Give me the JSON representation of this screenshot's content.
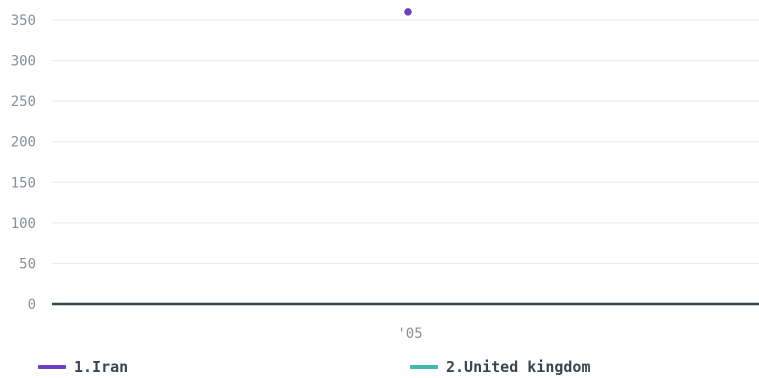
{
  "chart_data": {
    "type": "line",
    "title": "",
    "xlabel": "",
    "ylabel": "",
    "categories": [
      "'05"
    ],
    "ylim": [
      0,
      350
    ],
    "yticks": [
      0,
      50,
      100,
      150,
      200,
      250,
      300,
      350
    ],
    "ytick_labels": [
      "0",
      "50",
      "100",
      "150",
      "200",
      "250",
      "300",
      "350"
    ],
    "grid": true,
    "legend_position": "bottom",
    "series": [
      {
        "name": "1.Iran",
        "color": "#6b3fbf",
        "values": [
          360
        ]
      },
      {
        "name": "2.United kingdom",
        "color": "#3fb8b0",
        "values": [
          0
        ]
      }
    ]
  }
}
